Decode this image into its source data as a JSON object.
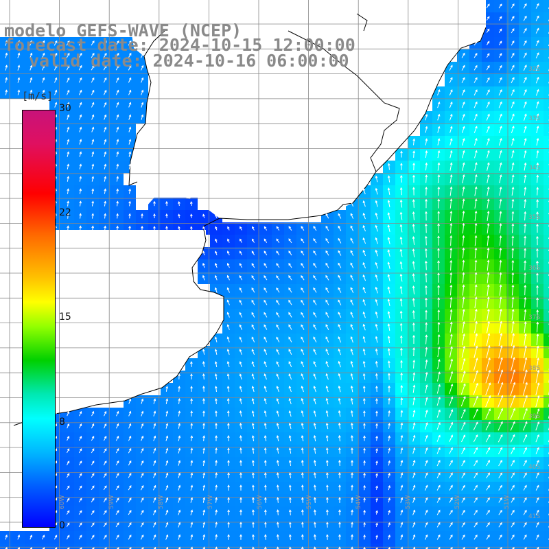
{
  "header": {
    "line1": "modelo GEFS-WAVE (NCEP)",
    "line2": "forecast date: 2024-10-15 12:00:00",
    "line3": "valid date: 2024-10-16 06:00:00"
  },
  "colorbar": {
    "unit": "[m/s]",
    "ticks": [
      "30",
      "22",
      "15",
      "8",
      "0"
    ],
    "tick_values": [
      30,
      22,
      15,
      8,
      0
    ]
  },
  "grid": {
    "lon_labels": [
      "60W",
      "59W",
      "58W",
      "57W",
      "56W",
      "55W",
      "54W",
      "53W",
      "52W",
      "51W"
    ],
    "lat_labels": [
      "32S",
      "33S",
      "34S",
      "35S",
      "36S",
      "37S",
      "38S",
      "39S",
      "40S",
      "41S"
    ]
  },
  "colors": {
    "land": "#ffffff",
    "coast": "#000000",
    "grid": "#888888",
    "arrows": "#ffffff",
    "title": "#8a8a8a"
  }
}
